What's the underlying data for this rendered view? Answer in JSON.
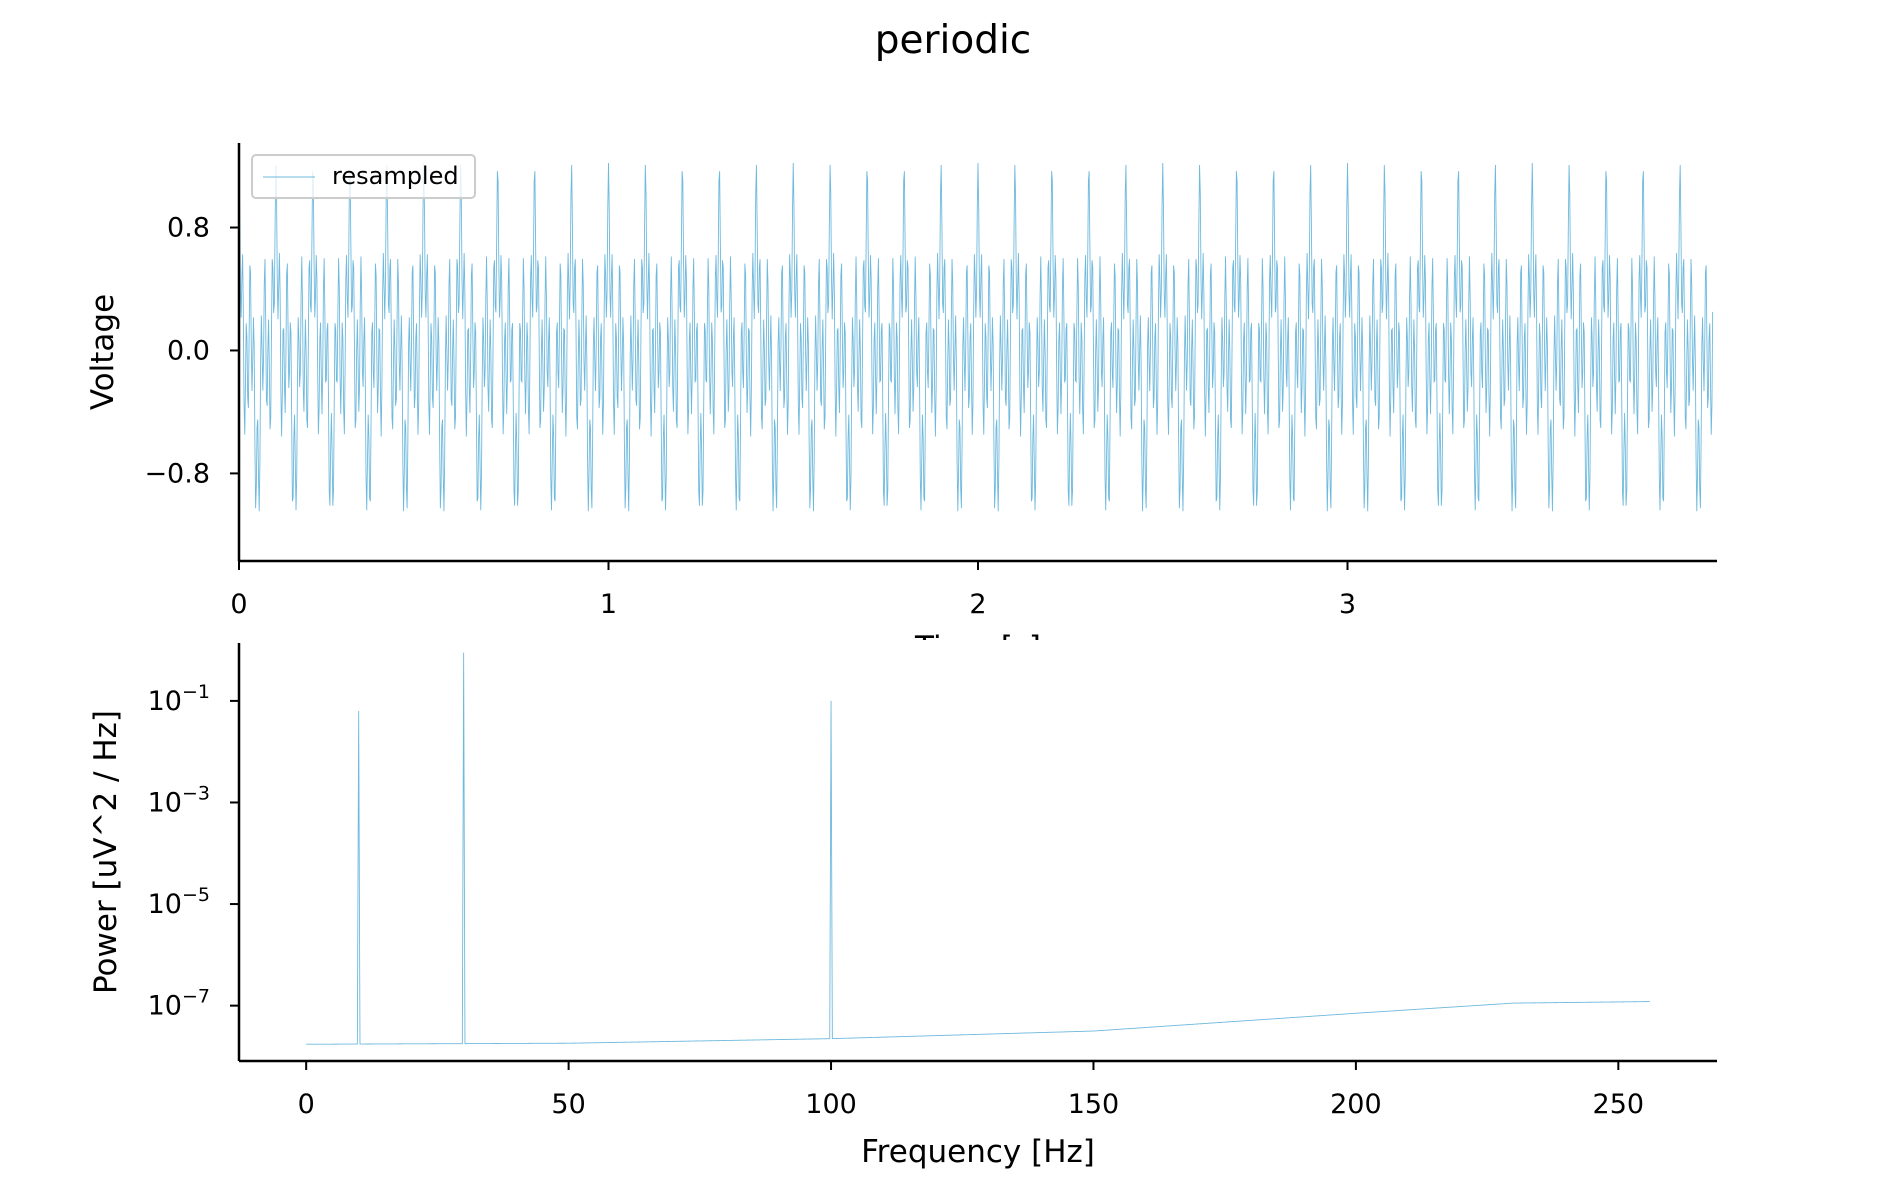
{
  "figure": {
    "title": "periodic",
    "line_color": "#6fb9dd"
  },
  "chart_data": [
    {
      "type": "line",
      "title": "",
      "xlabel": "Time [s]",
      "ylabel": "Voltage",
      "xlim": [
        0,
        4.0
      ],
      "ylim": [
        -1.37,
        1.35
      ],
      "xticks": [
        0,
        1,
        2,
        3
      ],
      "xtick_labels": [
        "0",
        "1",
        "2",
        "3"
      ],
      "yticks": [
        0.8,
        0.0,
        -0.8
      ],
      "ytick_labels": [
        "0.8",
        "0.0",
        "−0.8"
      ],
      "legend": {
        "entries": [
          "resampled"
        ],
        "location": "upper-left"
      },
      "grid": false,
      "series": [
        {
          "name": "resampled",
          "duration_s": 4.0,
          "sample_rate_hz": 512,
          "components_hz": [
            10,
            30,
            100
          ],
          "amplitude_range": [
            -1.22,
            1.22
          ],
          "x_start": 0,
          "x_end": 3.99
        }
      ]
    },
    {
      "type": "line",
      "title": "",
      "xlabel": "Frequency [Hz]",
      "ylabel": "Power [uV^2 / Hz]",
      "yscale": "log",
      "xlim": [
        -12.8,
        268.8
      ],
      "ylim": [
        -8.09,
        0.14
      ],
      "xticks": [
        0,
        50,
        100,
        150,
        200,
        250
      ],
      "xtick_labels": [
        "0",
        "50",
        "100",
        "150",
        "200",
        "250"
      ],
      "yticks": [
        -1,
        -3,
        -5,
        -7
      ],
      "grid": false,
      "series": [
        {
          "name": "",
          "peaks": [
            {
              "freq_hz": 10,
              "power_log10": -1.2
            },
            {
              "freq_hz": 30,
              "power_log10": -0.05
            },
            {
              "freq_hz": 100,
              "power_log10": -1.0
            }
          ],
          "baseline": [
            [
              0,
              -7.76
            ],
            [
              50,
              -7.74
            ],
            [
              100,
              -7.65
            ],
            [
              150,
              -7.5
            ],
            [
              200,
              -7.15
            ],
            [
              230,
              -6.95
            ],
            [
              256,
              -6.92
            ]
          ]
        }
      ]
    }
  ]
}
